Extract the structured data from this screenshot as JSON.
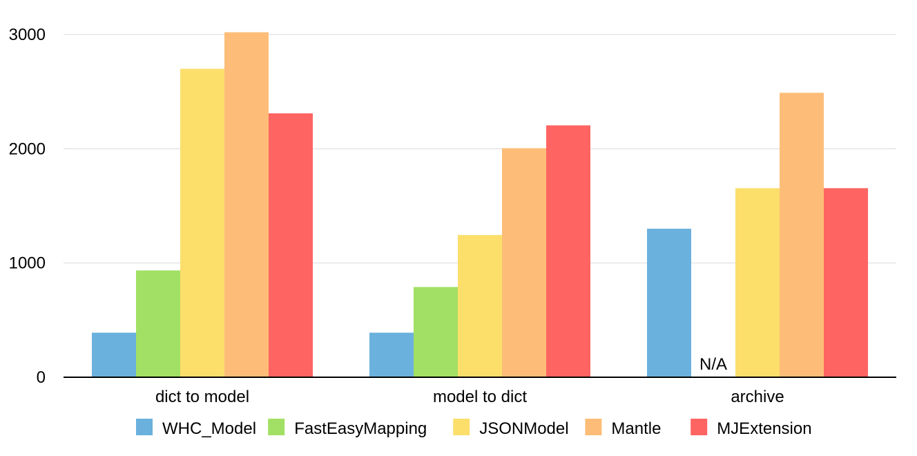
{
  "chart_data": {
    "type": "bar",
    "title": "",
    "xlabel": "",
    "ylabel": "",
    "categories": [
      "dict to model",
      "model to dict",
      "archive"
    ],
    "ylim": [
      0,
      3000
    ],
    "yticks": [
      0,
      1000,
      2000,
      3000
    ],
    "yticks_text": [
      "0",
      "1000",
      "2000",
      "3000"
    ],
    "grid": true,
    "legend_position": "bottom",
    "series": [
      {
        "name": "WHC_Model",
        "color": "#6ab1dd",
        "values": [
          390,
          390,
          1300
        ]
      },
      {
        "name": "FastEasyMapping",
        "color": "#a1e064",
        "values": [
          935,
          790,
          null
        ]
      },
      {
        "name": "JSONModel",
        "color": "#fcde6b",
        "values": [
          2700,
          1245,
          1655
        ]
      },
      {
        "name": "Mantle",
        "color": "#fdbd78",
        "values": [
          3020,
          2005,
          2490
        ]
      },
      {
        "name": "MJExtension",
        "color": "#fd6462",
        "values": [
          2310,
          2205,
          1655
        ]
      }
    ],
    "annotations": [
      {
        "text": "N/A",
        "category": "archive",
        "series": "FastEasyMapping"
      }
    ]
  }
}
